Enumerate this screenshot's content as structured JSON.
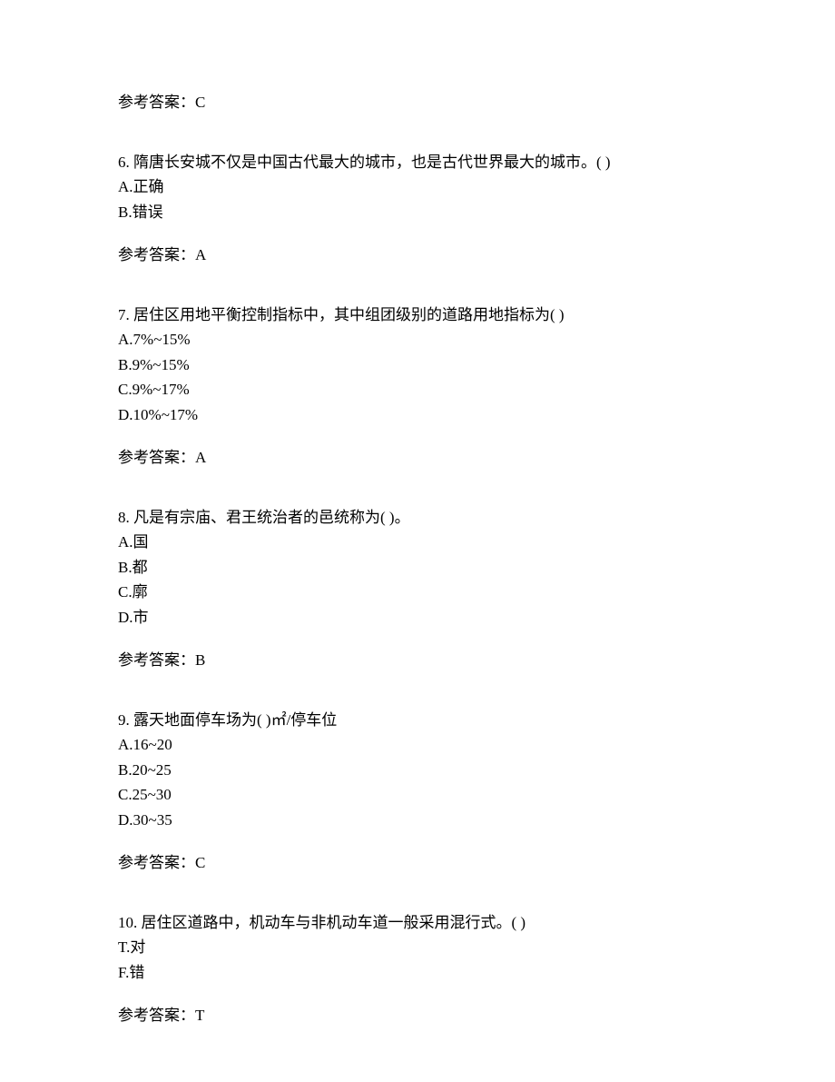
{
  "topAnswer": {
    "label": "参考答案：C"
  },
  "questions": [
    {
      "number": "6.",
      "text": "隋唐长安城不仅是中国古代最大的城市，也是古代世界最大的城市。(   )",
      "options": [
        {
          "key": "A.",
          "text": "正确"
        },
        {
          "key": "B.",
          "text": "错误"
        }
      ],
      "answerLabel": "参考答案：A"
    },
    {
      "number": "7.",
      "text": "居住区用地平衡控制指标中，其中组团级别的道路用地指标为(   )",
      "options": [
        {
          "key": "A.",
          "text": "7%~15%"
        },
        {
          "key": "B.",
          "text": "9%~15%"
        },
        {
          "key": "C.",
          "text": "9%~17%"
        },
        {
          "key": "D.",
          "text": "10%~17%"
        }
      ],
      "answerLabel": "参考答案：A"
    },
    {
      "number": "8.",
      "text": "凡是有宗庙、君王统治者的邑统称为(   )。",
      "options": [
        {
          "key": "A.",
          "text": "国"
        },
        {
          "key": "B.",
          "text": "都"
        },
        {
          "key": "C.",
          "text": "廓"
        },
        {
          "key": "D.",
          "text": "市"
        }
      ],
      "answerLabel": "参考答案：B"
    },
    {
      "number": "9.",
      "text": "露天地面停车场为(   )㎡/停车位",
      "options": [
        {
          "key": "A.",
          "text": "16~20"
        },
        {
          "key": "B.",
          "text": "20~25"
        },
        {
          "key": "C.",
          "text": "25~30"
        },
        {
          "key": "D.",
          "text": "30~35"
        }
      ],
      "answerLabel": "参考答案：C"
    },
    {
      "number": "10.",
      "text": "居住区道路中，机动车与非机动车道一般采用混行式。(   )",
      "options": [
        {
          "key": "T.",
          "text": "对"
        },
        {
          "key": "F.",
          "text": "错"
        }
      ],
      "answerLabel": "参考答案：T"
    }
  ]
}
